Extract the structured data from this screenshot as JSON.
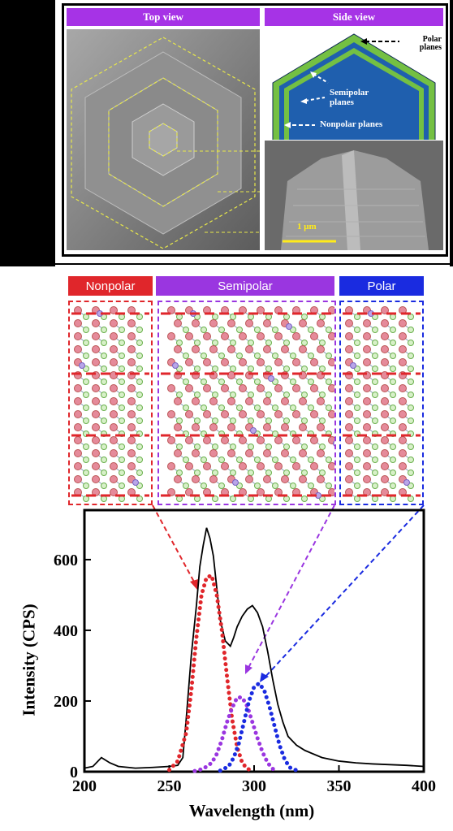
{
  "top_panel": {
    "top_view_label": "Top view",
    "side_view_label": "Side view",
    "polar_planes_label": "Polar planes",
    "semipolar_planes_label": "Semipolar planes",
    "nonpolar_planes_label": "Nonpolar planes",
    "scale_bar_label": "1 μm"
  },
  "structures": {
    "nonpolar_label": "Nonpolar",
    "semipolar_label": "Semipolar",
    "polar_label": "Polar",
    "colors": {
      "nonpolar": "#e0262b",
      "semipolar": "#9a36e0",
      "polar": "#1a2be0"
    }
  },
  "chart_data": {
    "type": "line",
    "xlabel": "Wavelength (nm)",
    "ylabel": "Intensity (CPS)",
    "xlim": [
      200,
      400
    ],
    "ylim": [
      0,
      740
    ],
    "xticks": [
      200,
      250,
      300,
      350,
      400
    ],
    "yticks": [
      0,
      200,
      400,
      600
    ],
    "series": [
      {
        "color": "#000000",
        "style": "solid",
        "x": [
          200,
          205,
          210,
          215,
          220,
          230,
          240,
          250,
          255,
          258,
          260,
          263,
          266,
          268,
          270,
          272,
          274,
          276,
          278,
          280,
          283,
          286,
          288,
          290,
          293,
          296,
          299,
          302,
          305,
          308,
          311,
          314,
          317,
          320,
          325,
          330,
          340,
          350,
          360,
          370,
          380,
          390,
          400
        ],
        "y": [
          10,
          15,
          40,
          25,
          15,
          10,
          12,
          15,
          18,
          40,
          150,
          330,
          470,
          580,
          640,
          690,
          660,
          610,
          520,
          430,
          370,
          355,
          380,
          410,
          440,
          460,
          470,
          450,
          410,
          340,
          260,
          190,
          140,
          100,
          75,
          60,
          40,
          30,
          25,
          22,
          20,
          18,
          15
        ]
      },
      {
        "color": "#e0262b",
        "style": "dotted",
        "x": [
          250,
          255,
          260,
          263,
          266,
          269,
          272,
          275,
          278,
          281,
          284,
          287,
          290,
          293,
          296,
          300
        ],
        "y": [
          5,
          30,
          110,
          230,
          380,
          500,
          550,
          555,
          500,
          400,
          270,
          150,
          70,
          25,
          8,
          2
        ]
      },
      {
        "color": "#9a36e0",
        "style": "dotted",
        "x": [
          265,
          270,
          275,
          278,
          281,
          284,
          287,
          290,
          293,
          296,
          299,
          302,
          305,
          308,
          311,
          314
        ],
        "y": [
          2,
          8,
          25,
          50,
          90,
          140,
          180,
          210,
          210,
          185,
          140,
          95,
          55,
          25,
          8,
          2
        ]
      },
      {
        "color": "#1a2be0",
        "style": "dotted",
        "x": [
          280,
          285,
          288,
          291,
          294,
          297,
          300,
          303,
          306,
          309,
          312,
          315,
          318,
          321,
          326
        ],
        "y": [
          3,
          15,
          40,
          80,
          140,
          200,
          240,
          250,
          230,
          185,
          130,
          75,
          35,
          12,
          2
        ]
      }
    ]
  }
}
